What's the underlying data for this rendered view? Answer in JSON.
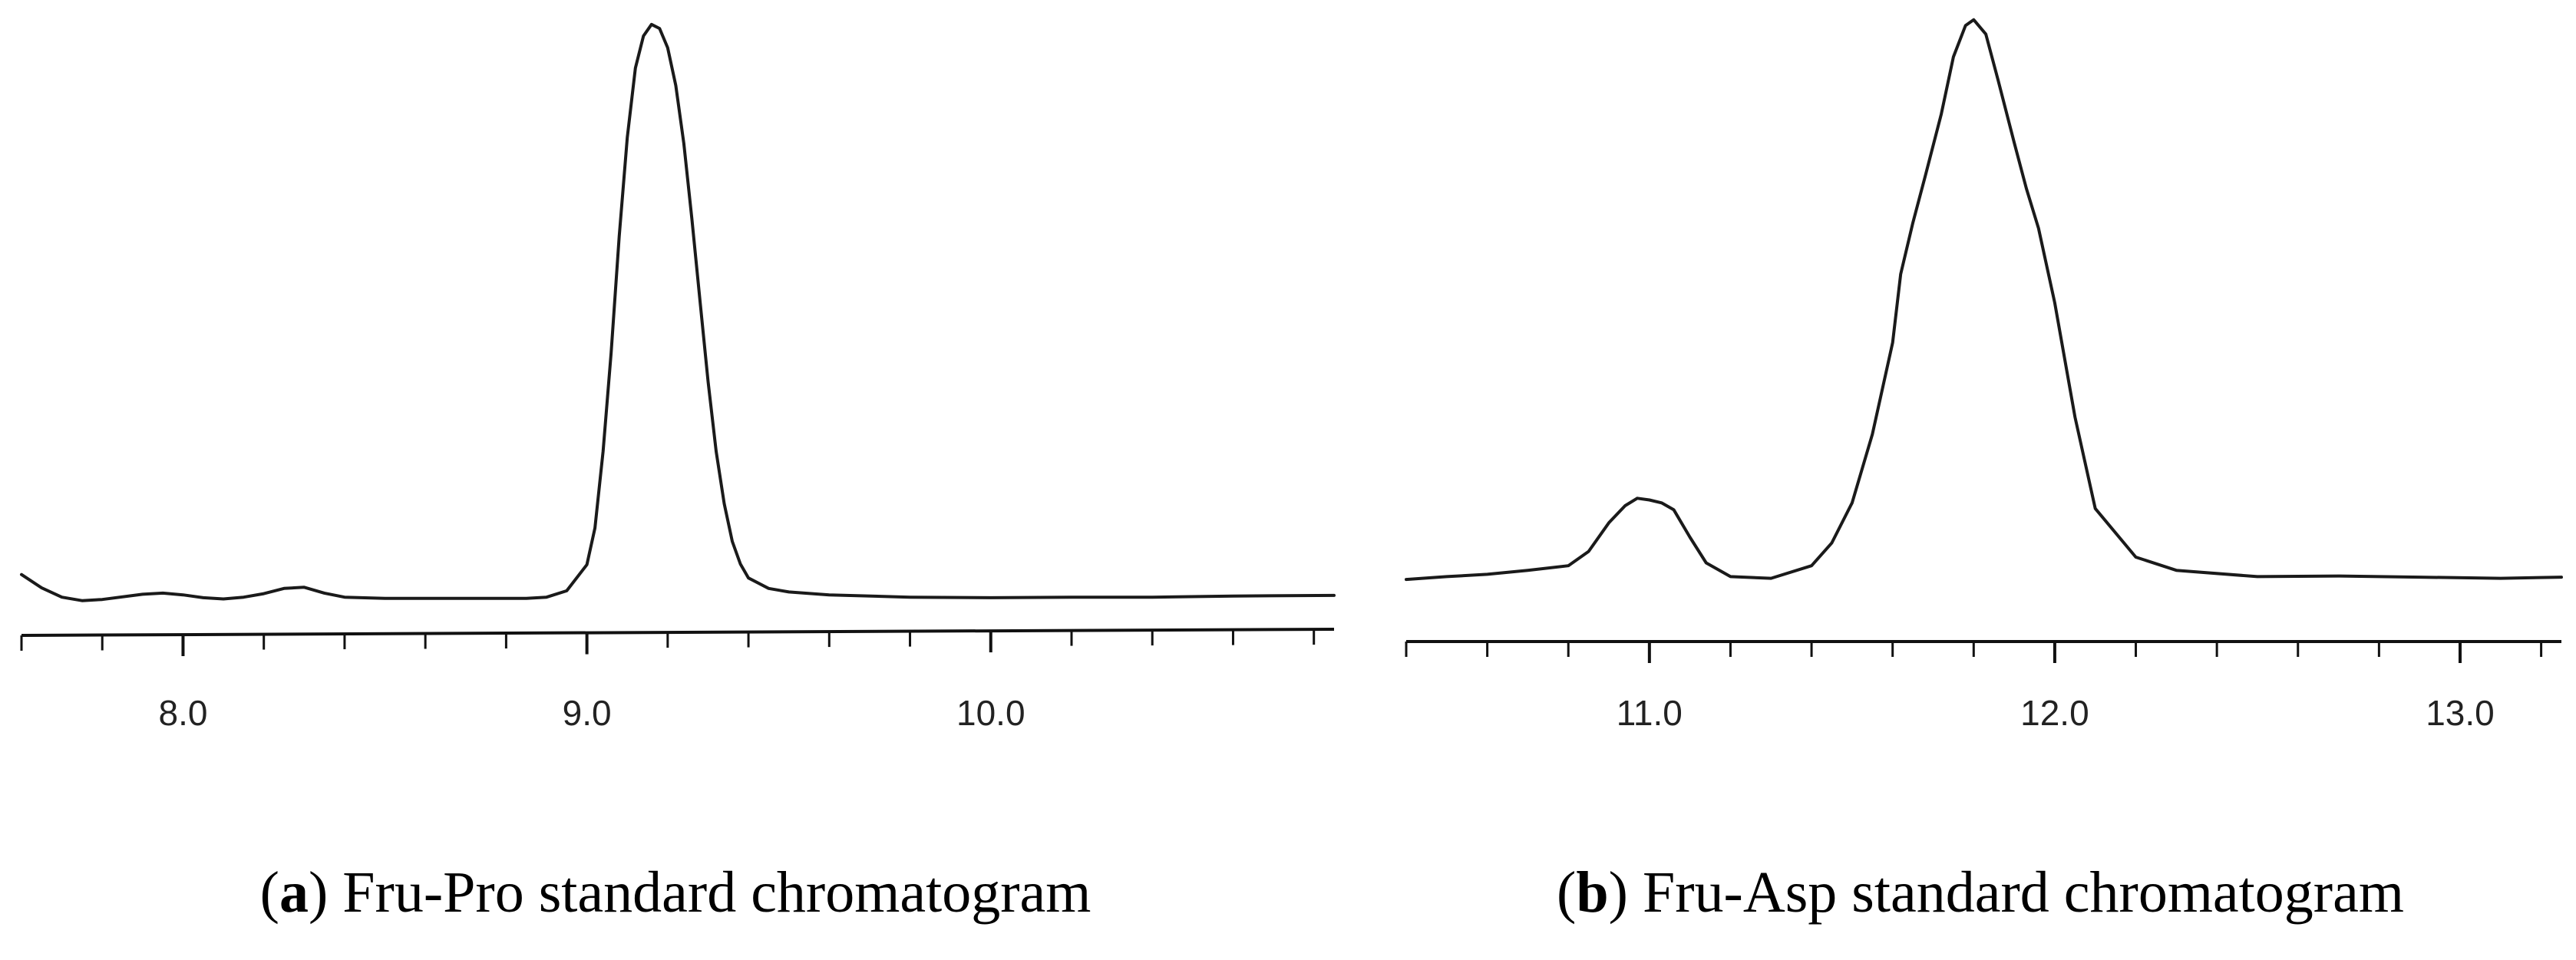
{
  "chart_data": [
    {
      "id": "a",
      "type": "line",
      "panel_letter": "a",
      "caption_text": "Fru-Pro standard chromatogram",
      "xlim": [
        7.6,
        10.85
      ],
      "ylim": [
        0,
        100
      ],
      "x_ticks": [
        8.0,
        9.0,
        10.0
      ],
      "x_tick_labels": [
        "8.0",
        "9.0",
        "10.0"
      ],
      "minor_tick_step": 0.2,
      "baseline_slope": true,
      "y_axis_visible": false,
      "grid": false,
      "series": [
        {
          "x": [
            7.6,
            7.65,
            7.7,
            7.75,
            7.8,
            7.9,
            7.95,
            8.0,
            8.05,
            8.1,
            8.15,
            8.2,
            8.25,
            8.3,
            8.35,
            8.4,
            8.5,
            8.6,
            8.7,
            8.8,
            8.85,
            8.9,
            8.95,
            9.0,
            9.02,
            9.04,
            9.06,
            9.08,
            9.1,
            9.12,
            9.14,
            9.16,
            9.18,
            9.2,
            9.22,
            9.24,
            9.26,
            9.28,
            9.3,
            9.32,
            9.34,
            9.36,
            9.38,
            9.4,
            9.45,
            9.5,
            9.6,
            9.8,
            10.0,
            10.2,
            10.4,
            10.6,
            10.85
          ],
          "y": [
            4.8,
            2.5,
            0.9,
            0.3,
            0.5,
            1.4,
            1.6,
            1.3,
            0.8,
            0.6,
            0.9,
            1.5,
            2.4,
            2.6,
            1.6,
            0.9,
            0.7,
            0.7,
            0.7,
            0.7,
            0.7,
            0.9,
            2.0,
            6.5,
            12.8,
            26.0,
            43.0,
            63.0,
            80.0,
            92.0,
            97.5,
            99.5,
            98.8,
            95.5,
            89.0,
            79.0,
            66.0,
            52.0,
            38.0,
            26.0,
            17.0,
            10.5,
            6.6,
            4.2,
            2.4,
            1.8,
            1.3,
            0.9,
            0.8,
            0.9,
            0.9,
            1.1,
            1.2
          ]
        }
      ]
    },
    {
      "id": "b",
      "type": "line",
      "panel_letter": "b",
      "caption_text": "Fru-Asp standard chromatogram",
      "xlim": [
        10.4,
        13.25
      ],
      "ylim": [
        0,
        100
      ],
      "x_ticks": [
        11.0,
        12.0,
        13.0
      ],
      "x_tick_labels": [
        "11.0",
        "12.0",
        "13.0"
      ],
      "minor_tick_step": 0.2,
      "baseline_slope": false,
      "y_axis_visible": false,
      "grid": false,
      "series": [
        {
          "x": [
            10.4,
            10.5,
            10.6,
            10.7,
            10.8,
            10.85,
            10.9,
            10.94,
            10.97,
            11.0,
            11.03,
            11.06,
            11.1,
            11.14,
            11.2,
            11.3,
            11.4,
            11.45,
            11.5,
            11.55,
            11.6,
            11.62,
            11.65,
            11.68,
            11.72,
            11.75,
            11.78,
            11.8,
            11.83,
            11.86,
            11.9,
            11.93,
            11.96,
            12.0,
            12.05,
            12.1,
            12.2,
            12.3,
            12.5,
            12.7,
            12.9,
            13.1,
            13.25
          ],
          "y": [
            1.6,
            2.1,
            2.5,
            3.2,
            4.0,
            6.5,
            11.5,
            14.5,
            15.8,
            15.5,
            15.0,
            13.8,
            9.0,
            4.5,
            2.1,
            1.8,
            4.0,
            8.0,
            15.0,
            27.0,
            43.0,
            55.0,
            64.0,
            72.0,
            83.0,
            93.0,
            98.5,
            99.5,
            97.0,
            89.0,
            78.0,
            70.0,
            63.0,
            50.0,
            30.0,
            14.0,
            5.5,
            3.2,
            2.1,
            2.2,
            2.0,
            1.8,
            2.0
          ]
        }
      ]
    }
  ]
}
